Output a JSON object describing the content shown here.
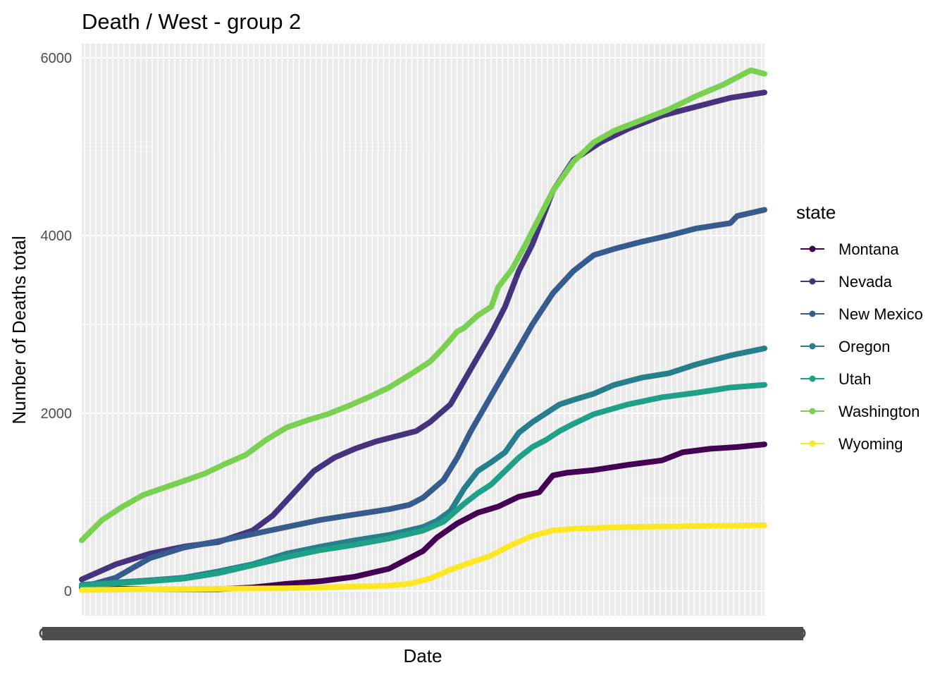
{
  "chart_data": {
    "type": "line",
    "title": "Death / West - group 2",
    "xlabel": "Date",
    "ylabel": "Number of Deaths total",
    "ylim": [
      -280,
      6150
    ],
    "y_ticks": [
      0,
      2000,
      4000,
      6000
    ],
    "y_tick_labels": [
      "0",
      "2000",
      "4000",
      "6000"
    ],
    "x_tick_labels": "illegible (overplotted dates)",
    "x_range_index": [
      0,
      100
    ],
    "grid": true,
    "background": "#ebebeb",
    "legend": {
      "title": "state",
      "position": "right"
    },
    "series": [
      {
        "name": "Montana",
        "color": "#440154",
        "points": [
          [
            0,
            30
          ],
          [
            10,
            20
          ],
          [
            20,
            20
          ],
          [
            25,
            40
          ],
          [
            30,
            80
          ],
          [
            35,
            110
          ],
          [
            40,
            160
          ],
          [
            45,
            250
          ],
          [
            50,
            450
          ],
          [
            52,
            600
          ],
          [
            55,
            760
          ],
          [
            58,
            880
          ],
          [
            61,
            950
          ],
          [
            64,
            1060
          ],
          [
            67,
            1110
          ],
          [
            69,
            1300
          ],
          [
            71,
            1330
          ],
          [
            75,
            1360
          ],
          [
            80,
            1420
          ],
          [
            85,
            1470
          ],
          [
            88,
            1560
          ],
          [
            92,
            1600
          ],
          [
            96,
            1620
          ],
          [
            100,
            1650
          ]
        ]
      },
      {
        "name": "Nevada",
        "color": "#46337e",
        "points": [
          [
            0,
            130
          ],
          [
            5,
            300
          ],
          [
            10,
            420
          ],
          [
            15,
            500
          ],
          [
            20,
            550
          ],
          [
            25,
            680
          ],
          [
            28,
            850
          ],
          [
            31,
            1100
          ],
          [
            34,
            1350
          ],
          [
            37,
            1500
          ],
          [
            40,
            1600
          ],
          [
            43,
            1680
          ],
          [
            46,
            1740
          ],
          [
            49,
            1800
          ],
          [
            51,
            1900
          ],
          [
            54,
            2100
          ],
          [
            57,
            2500
          ],
          [
            60,
            2900
          ],
          [
            62,
            3200
          ],
          [
            64,
            3600
          ],
          [
            66,
            3900
          ],
          [
            69,
            4500
          ],
          [
            72,
            4850
          ],
          [
            76,
            5050
          ],
          [
            80,
            5200
          ],
          [
            85,
            5350
          ],
          [
            90,
            5450
          ],
          [
            95,
            5550
          ],
          [
            100,
            5610
          ]
        ]
      },
      {
        "name": "New Mexico",
        "color": "#365c8d",
        "points": [
          [
            0,
            40
          ],
          [
            5,
            150
          ],
          [
            10,
            370
          ],
          [
            15,
            490
          ],
          [
            20,
            560
          ],
          [
            25,
            640
          ],
          [
            30,
            720
          ],
          [
            35,
            800
          ],
          [
            40,
            860
          ],
          [
            45,
            920
          ],
          [
            48,
            970
          ],
          [
            50,
            1050
          ],
          [
            53,
            1250
          ],
          [
            55,
            1500
          ],
          [
            57,
            1800
          ],
          [
            60,
            2200
          ],
          [
            63,
            2600
          ],
          [
            66,
            3000
          ],
          [
            69,
            3350
          ],
          [
            72,
            3600
          ],
          [
            75,
            3780
          ],
          [
            78,
            3850
          ],
          [
            82,
            3930
          ],
          [
            86,
            4000
          ],
          [
            90,
            4080
          ],
          [
            95,
            4140
          ],
          [
            96,
            4220
          ],
          [
            100,
            4290
          ]
        ]
      },
      {
        "name": "Oregon",
        "color": "#277f8e",
        "points": [
          [
            0,
            70
          ],
          [
            10,
            120
          ],
          [
            15,
            150
          ],
          [
            20,
            220
          ],
          [
            25,
            300
          ],
          [
            30,
            420
          ],
          [
            35,
            500
          ],
          [
            40,
            570
          ],
          [
            45,
            630
          ],
          [
            50,
            720
          ],
          [
            52,
            790
          ],
          [
            54,
            900
          ],
          [
            56,
            1150
          ],
          [
            58,
            1350
          ],
          [
            60,
            1450
          ],
          [
            62,
            1560
          ],
          [
            64,
            1780
          ],
          [
            66,
            1900
          ],
          [
            68,
            2000
          ],
          [
            70,
            2100
          ],
          [
            72,
            2150
          ],
          [
            75,
            2220
          ],
          [
            78,
            2320
          ],
          [
            82,
            2400
          ],
          [
            86,
            2450
          ],
          [
            90,
            2550
          ],
          [
            95,
            2650
          ],
          [
            100,
            2730
          ]
        ]
      },
      {
        "name": "Utah",
        "color": "#1fa187",
        "points": [
          [
            0,
            60
          ],
          [
            10,
            110
          ],
          [
            15,
            140
          ],
          [
            20,
            200
          ],
          [
            25,
            290
          ],
          [
            30,
            380
          ],
          [
            35,
            460
          ],
          [
            40,
            520
          ],
          [
            45,
            590
          ],
          [
            50,
            680
          ],
          [
            53,
            780
          ],
          [
            56,
            980
          ],
          [
            58,
            1100
          ],
          [
            60,
            1200
          ],
          [
            62,
            1350
          ],
          [
            64,
            1500
          ],
          [
            66,
            1620
          ],
          [
            68,
            1700
          ],
          [
            70,
            1800
          ],
          [
            72,
            1880
          ],
          [
            75,
            1990
          ],
          [
            80,
            2100
          ],
          [
            85,
            2180
          ],
          [
            90,
            2230
          ],
          [
            95,
            2290
          ],
          [
            100,
            2320
          ]
        ]
      },
      {
        "name": "Washington",
        "color": "#7ad151",
        "points": [
          [
            0,
            570
          ],
          [
            3,
            800
          ],
          [
            6,
            950
          ],
          [
            9,
            1080
          ],
          [
            12,
            1160
          ],
          [
            15,
            1240
          ],
          [
            18,
            1320
          ],
          [
            21,
            1430
          ],
          [
            24,
            1530
          ],
          [
            27,
            1700
          ],
          [
            30,
            1840
          ],
          [
            33,
            1920
          ],
          [
            36,
            1990
          ],
          [
            39,
            2080
          ],
          [
            42,
            2180
          ],
          [
            45,
            2290
          ],
          [
            48,
            2430
          ],
          [
            51,
            2580
          ],
          [
            53,
            2740
          ],
          [
            55,
            2920
          ],
          [
            56,
            2960
          ],
          [
            58,
            3100
          ],
          [
            60,
            3200
          ],
          [
            61,
            3420
          ],
          [
            63,
            3620
          ],
          [
            65,
            3900
          ],
          [
            67,
            4200
          ],
          [
            69,
            4500
          ],
          [
            72,
            4830
          ],
          [
            75,
            5050
          ],
          [
            78,
            5180
          ],
          [
            82,
            5300
          ],
          [
            86,
            5420
          ],
          [
            90,
            5570
          ],
          [
            94,
            5700
          ],
          [
            98,
            5860
          ],
          [
            100,
            5820
          ]
        ]
      },
      {
        "name": "Wyoming",
        "color": "#fde725",
        "points": [
          [
            0,
            10
          ],
          [
            10,
            20
          ],
          [
            20,
            25
          ],
          [
            30,
            30
          ],
          [
            40,
            50
          ],
          [
            45,
            60
          ],
          [
            48,
            80
          ],
          [
            51,
            140
          ],
          [
            54,
            240
          ],
          [
            57,
            320
          ],
          [
            60,
            400
          ],
          [
            63,
            520
          ],
          [
            66,
            620
          ],
          [
            69,
            680
          ],
          [
            72,
            700
          ],
          [
            76,
            710
          ],
          [
            80,
            720
          ],
          [
            85,
            725
          ],
          [
            90,
            730
          ],
          [
            95,
            735
          ],
          [
            100,
            740
          ]
        ]
      }
    ]
  }
}
